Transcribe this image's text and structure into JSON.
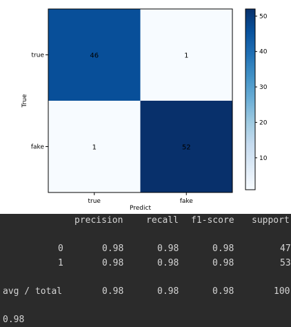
{
  "chart_data": {
    "type": "heatmap",
    "x_categories": [
      "true",
      "fake"
    ],
    "y_categories": [
      "true",
      "fake"
    ],
    "matrix": [
      [
        46,
        1
      ],
      [
        1,
        52
      ]
    ],
    "xlabel": "Predict",
    "ylabel": "True",
    "colormap": "Blues",
    "colorbar": {
      "min": 1,
      "max": 52,
      "ticks": [
        10,
        20,
        30,
        40,
        50
      ]
    },
    "colors": {
      "low": "#f7fbff",
      "high": "#08306b",
      "mid": "#0b559f"
    }
  },
  "report": {
    "columns": [
      "precision",
      "recall",
      "f1-score",
      "support"
    ],
    "rows": [
      {
        "label": "0",
        "values": [
          "0.98",
          "0.98",
          "0.98",
          "47"
        ]
      },
      {
        "label": "1",
        "values": [
          "0.98",
          "0.98",
          "0.98",
          "53"
        ]
      },
      {
        "label": "avg / total",
        "values": [
          "0.98",
          "0.98",
          "0.98",
          "100"
        ]
      }
    ],
    "accuracy": "0.98"
  },
  "console": {
    "background": "#2b2b2b",
    "text_color": "#d4d4d4"
  }
}
